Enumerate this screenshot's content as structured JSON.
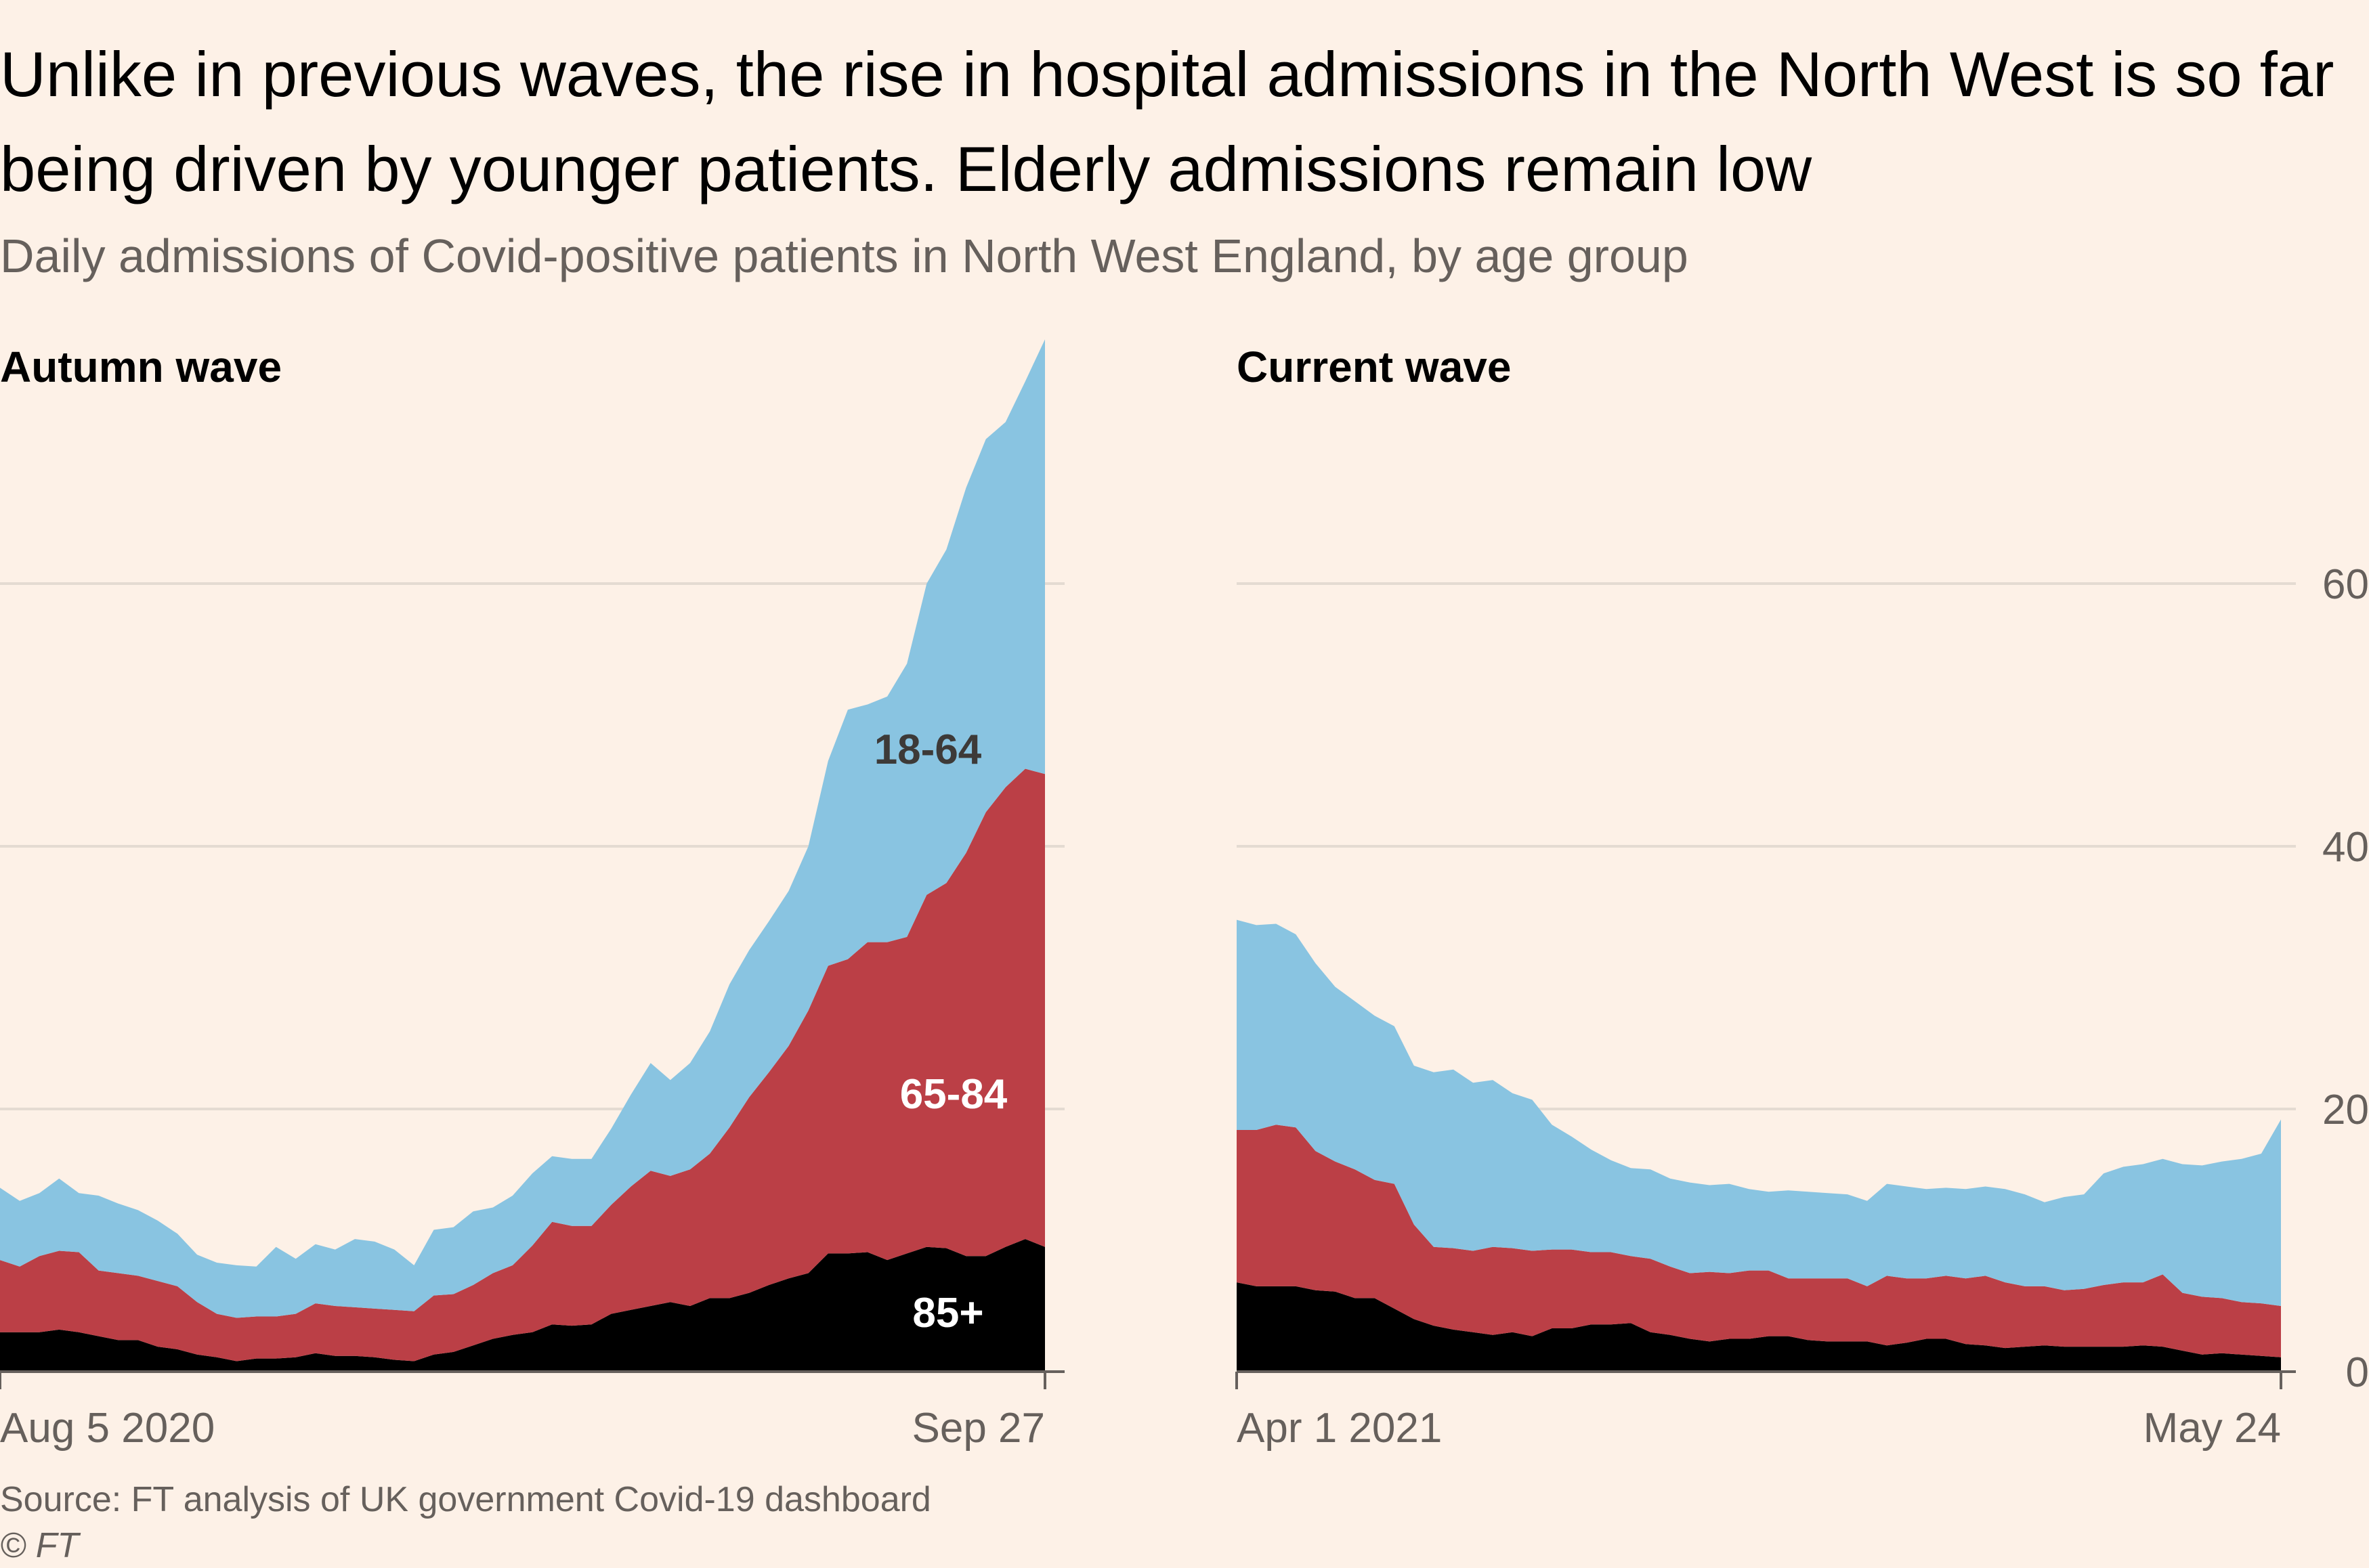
{
  "header": {
    "title": "Unlike in previous waves, the rise in hospital admissions in the North West is so far being driven by younger patients. Elderly admissions remain low",
    "subtitle": "Daily admissions of Covid-positive patients in North West England, by age group"
  },
  "footer": {
    "source": "Source: FT analysis of UK government Covid-19 dashboard",
    "copyright": "© FT"
  },
  "colors": {
    "background": "#fdf1e7",
    "age_85_plus": "#000000",
    "age_65_84": "#bb3f46",
    "age_18_64": "#89c4e1",
    "gridline": "#e4dbd2",
    "axis_text": "#66605c"
  },
  "chart_data": [
    {
      "type": "area",
      "stacked": true,
      "title": "Autumn wave",
      "x_start": "Aug 5 2020",
      "x_end": "Sep 27",
      "xtick_labels": [
        "Aug 5 2020",
        "Sep 27"
      ],
      "ylim": [
        0,
        78
      ],
      "yticks": [
        0,
        20,
        40,
        60
      ],
      "grid": true,
      "series_labels": [
        {
          "series": "18-64",
          "text": "18-64"
        },
        {
          "series": "65-84",
          "text": "65-84"
        },
        {
          "series": "85+",
          "text": "85+"
        }
      ],
      "series": [
        {
          "name": "85+",
          "values": [
            3.0,
            3.0,
            3.0,
            3.2,
            3.0,
            2.7,
            2.4,
            2.4,
            1.9,
            1.7,
            1.3,
            1.1,
            0.8,
            1.0,
            1.0,
            1.1,
            1.4,
            1.2,
            1.2,
            1.1,
            0.9,
            0.8,
            1.3,
            1.5,
            2.0,
            2.5,
            2.8,
            3.0,
            3.6,
            3.5,
            3.6,
            4.4,
            4.7,
            5.0,
            5.3,
            5.0,
            5.6,
            5.6,
            6.0,
            6.6,
            7.1,
            7.5,
            9.0,
            9.0,
            9.1,
            8.5,
            9.0,
            9.5,
            9.4,
            8.8,
            8.8,
            9.5,
            10.1,
            9.5
          ]
        },
        {
          "name": "65-84",
          "values": [
            5.5,
            5.0,
            5.8,
            6.0,
            6.1,
            5.0,
            5.1,
            4.9,
            5.0,
            4.8,
            4.0,
            3.3,
            3.3,
            3.2,
            3.2,
            3.3,
            3.8,
            3.8,
            3.7,
            3.7,
            3.8,
            3.8,
            4.5,
            4.4,
            4.6,
            5.0,
            5.3,
            6.6,
            7.8,
            7.6,
            7.5,
            8.3,
            9.4,
            10.3,
            9.6,
            10.4,
            11.0,
            13.0,
            14.9,
            16.2,
            17.7,
            20.0,
            21.9,
            22.4,
            23.6,
            24.2,
            24.1,
            26.8,
            27.8,
            30.7,
            33.8,
            35.0,
            35.8,
            36.0
          ]
        },
        {
          "name": "18-64",
          "values": [
            5.5,
            5.0,
            4.8,
            5.5,
            4.5,
            5.7,
            5.3,
            5.0,
            4.6,
            4.0,
            3.6,
            3.9,
            4.0,
            3.8,
            5.3,
            4.2,
            4.5,
            4.3,
            5.2,
            5.1,
            4.6,
            3.5,
            5.0,
            5.1,
            5.6,
            5.0,
            5.3,
            5.5,
            5.0,
            5.1,
            5.1,
            5.8,
            7.0,
            8.2,
            7.3,
            8.1,
            9.3,
            10.9,
            11.2,
            11.5,
            11.8,
            12.5,
            15.6,
            19.0,
            18.1,
            18.7,
            20.8,
            23.7,
            25.4,
            27.8,
            28.4,
            27.8,
            29.5,
            33.1
          ]
        }
      ]
    },
    {
      "type": "area",
      "stacked": true,
      "title": "Current wave",
      "x_start": "Apr 1 2021",
      "x_end": "May 24",
      "xtick_labels": [
        "Apr 1 2021",
        "May 24"
      ],
      "ylim": [
        0,
        78
      ],
      "yticks": [
        0,
        20,
        40,
        60
      ],
      "ytick_labels": [
        "0",
        "20",
        "40",
        "60"
      ],
      "grid": true,
      "series": [
        {
          "name": "85+",
          "values": [
            6.8,
            6.5,
            6.5,
            6.5,
            6.2,
            6.1,
            5.6,
            5.6,
            4.8,
            4.0,
            3.5,
            3.2,
            3.0,
            2.8,
            3.0,
            2.7,
            3.3,
            3.3,
            3.6,
            3.6,
            3.7,
            3.0,
            2.8,
            2.5,
            2.3,
            2.5,
            2.5,
            2.7,
            2.7,
            2.4,
            2.3,
            2.3,
            2.3,
            2.0,
            2.2,
            2.5,
            2.5,
            2.1,
            2.0,
            1.8,
            1.9,
            2.0,
            1.9,
            1.9,
            1.9,
            1.9,
            2.0,
            1.9,
            1.6,
            1.3,
            1.4,
            1.3,
            1.2,
            1.1
          ]
        },
        {
          "name": "65-84",
          "values": [
            11.6,
            11.9,
            12.3,
            12.1,
            10.6,
            9.9,
            9.8,
            9.0,
            9.5,
            7.2,
            6.0,
            6.2,
            6.2,
            6.7,
            6.4,
            6.5,
            6.0,
            6.0,
            5.5,
            5.5,
            5.1,
            5.6,
            5.2,
            5.0,
            5.3,
            5.0,
            5.2,
            5.0,
            4.4,
            4.7,
            4.8,
            4.8,
            4.2,
            5.3,
            4.9,
            4.6,
            4.8,
            5.0,
            5.3,
            5.0,
            4.6,
            4.5,
            4.3,
            4.4,
            4.7,
            4.9,
            4.8,
            5.5,
            4.4,
            4.4,
            4.2,
            4.0,
            4.0,
            3.9
          ]
        },
        {
          "name": "18-64",
          "values": [
            16.0,
            15.6,
            15.3,
            14.7,
            14.3,
            13.3,
            12.8,
            12.5,
            12.0,
            12.1,
            13.3,
            13.6,
            12.8,
            12.7,
            11.8,
            11.5,
            9.5,
            8.6,
            7.8,
            7.0,
            6.7,
            6.8,
            6.7,
            6.9,
            6.6,
            6.8,
            6.2,
            6.0,
            6.7,
            6.6,
            6.5,
            6.4,
            6.5,
            7.0,
            7.0,
            6.8,
            6.7,
            6.8,
            6.8,
            7.1,
            7.0,
            6.4,
            7.1,
            7.2,
            8.5,
            8.8,
            9.0,
            8.8,
            9.8,
            10.0,
            10.4,
            10.9,
            11.4,
            14.2
          ]
        }
      ]
    }
  ]
}
